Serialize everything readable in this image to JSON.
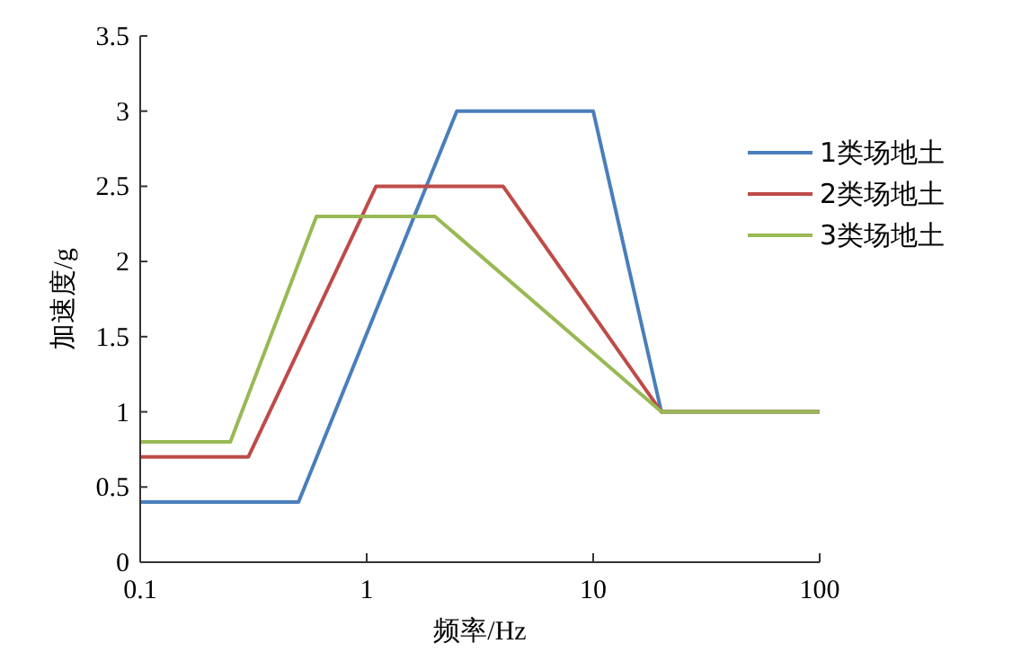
{
  "chart_data": {
    "type": "line",
    "xlabel": "频率/Hz",
    "ylabel": "加速度/g",
    "log": "x",
    "xlim": [
      0.1,
      100
    ],
    "xticks": [
      0.1,
      1,
      10,
      100
    ],
    "ylim": [
      0,
      3.5
    ],
    "yticks": [
      0,
      0.5,
      1,
      1.5,
      2,
      2.5,
      3,
      3.5
    ],
    "legend": "right",
    "marker": "none",
    "line_style": "solid",
    "series": [
      {
        "name": "1类场地土",
        "color": "#4a7ebb",
        "x": [
          0.1,
          0.5,
          2.5,
          10,
          20,
          100
        ],
        "values": [
          0.4,
          0.4,
          3,
          3,
          1,
          1
        ]
      },
      {
        "name": "2类场地土",
        "color": "#be4b48",
        "x": [
          0.1,
          0.3,
          1.1,
          4,
          20,
          100
        ],
        "values": [
          0.7,
          0.7,
          2.5,
          2.5,
          1,
          1
        ]
      },
      {
        "name": "3类场地土",
        "color": "#98b954",
        "x": [
          0.1,
          0.25,
          0.6,
          2,
          20,
          100
        ],
        "values": [
          0.8,
          0.8,
          2.3,
          2.3,
          1,
          1
        ]
      }
    ]
  }
}
